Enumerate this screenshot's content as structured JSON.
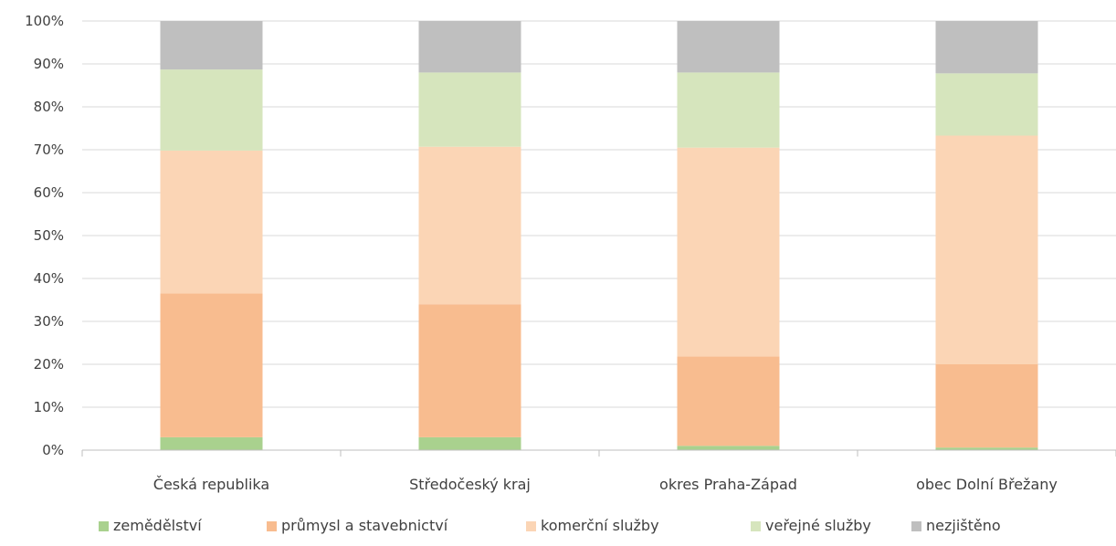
{
  "chart_data": {
    "type": "bar",
    "stacked": true,
    "percent": true,
    "title": "",
    "xlabel": "",
    "ylabel": "",
    "ylim": [
      0,
      100
    ],
    "yticks": [
      "0%",
      "10%",
      "20%",
      "30%",
      "40%",
      "50%",
      "60%",
      "70%",
      "80%",
      "90%",
      "100%"
    ],
    "grid": true,
    "legend_position": "bottom",
    "categories": [
      "Česká republika",
      "Středočeský kraj",
      "okres Praha-Západ",
      "obec Dolní Břežany"
    ],
    "series": [
      {
        "name": "zemědělství",
        "color": "#a9d18e",
        "values": [
          3,
          3,
          1,
          0.6
        ]
      },
      {
        "name": "průmysl a stavebnictví",
        "color": "#f8bc8f",
        "values": [
          33.5,
          31,
          20.8,
          19.4
        ]
      },
      {
        "name": "komerční služby",
        "color": "#fbd5b5",
        "values": [
          33.3,
          36.7,
          48.7,
          53.3
        ]
      },
      {
        "name": "veřejné služby",
        "color": "#d6e5bd",
        "values": [
          18.9,
          17.3,
          17.5,
          14.5
        ]
      },
      {
        "name": "nezjištěno",
        "color": "#bfbfbf",
        "values": [
          11.3,
          12,
          12,
          12.2
        ]
      }
    ]
  }
}
